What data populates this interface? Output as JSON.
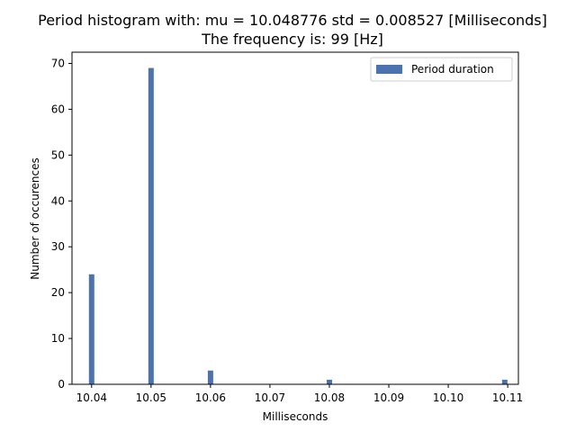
{
  "chart_data": {
    "type": "bar",
    "title": "Period histogram with: mu = 10.048776  std = 0.008527 [Milliseconds]",
    "subtitle": "The frequency is: 99 [Hz]",
    "xlabel": "Milliseconds",
    "ylabel": "Number of occurences",
    "xlim": [
      10.0367,
      10.1118
    ],
    "ylim": [
      0,
      72.45
    ],
    "x_ticks": [
      "10.04",
      "10.05",
      "10.06",
      "10.07",
      "10.08",
      "10.09",
      "10.10",
      "10.11"
    ],
    "y_ticks": [
      "0",
      "10",
      "20",
      "30",
      "40",
      "50",
      "60",
      "70"
    ],
    "series": [
      {
        "name": "Period duration",
        "color": "#4c72b0",
        "x": [
          10.04,
          10.05,
          10.06,
          10.08,
          10.1095
        ],
        "values": [
          24,
          69,
          3,
          1,
          1
        ]
      }
    ],
    "legend_position": "top-right",
    "grid": false
  }
}
